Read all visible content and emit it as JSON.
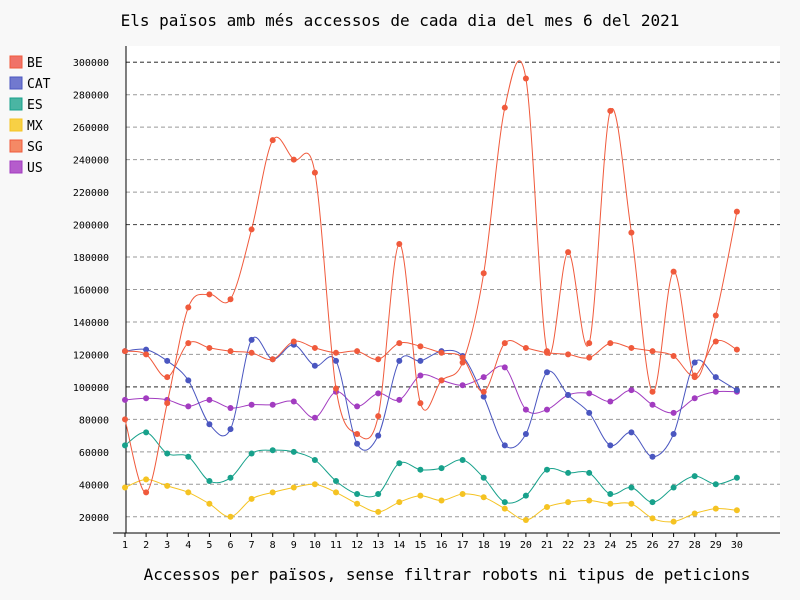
{
  "chart_data": {
    "type": "line",
    "title": "Els països amb més accessos de cada dia del mes 6 del 2021",
    "xlabel": "Accessos per països, sense filtrar robots ni tipus de peticions",
    "ylabel": "",
    "ylim": [
      10000,
      310000
    ],
    "xlim": [
      1,
      30
    ],
    "yticks": [
      20000,
      40000,
      60000,
      80000,
      100000,
      120000,
      140000,
      160000,
      180000,
      200000,
      220000,
      240000,
      260000,
      280000,
      300000
    ],
    "grid": "horizontal dashed",
    "legend_position": "top-left",
    "categories": [
      "1",
      "2",
      "3",
      "4",
      "5",
      "6",
      "7",
      "8",
      "9",
      "10",
      "11",
      "12",
      "13",
      "14",
      "15",
      "16",
      "17",
      "18",
      "19",
      "20",
      "21",
      "22",
      "23",
      "24",
      "25",
      "26",
      "27",
      "28",
      "29",
      "30"
    ],
    "series": [
      {
        "name": "BE",
        "color": "#f05a3c",
        "values": [
          122000,
          120000,
          106000,
          127000,
          124000,
          122000,
          121000,
          117000,
          128000,
          124000,
          121000,
          122000,
          117000,
          127000,
          125000,
          121000,
          118000,
          97000,
          127000,
          124000,
          121000,
          120000,
          118000,
          127000,
          124000,
          122000,
          119000,
          107000,
          128000,
          123000
        ]
      },
      {
        "name": "CAT",
        "color": "#4a56c0",
        "values": [
          122000,
          123000,
          116000,
          104000,
          77000,
          74000,
          129000,
          117000,
          126000,
          113000,
          116000,
          65000,
          70000,
          116000,
          116000,
          122000,
          119000,
          94000,
          64000,
          71000,
          109000,
          95000,
          84000,
          64000,
          72000,
          57000,
          71000,
          115000,
          106000,
          98000
        ]
      },
      {
        "name": "ES",
        "color": "#17a18b",
        "values": [
          64000,
          72000,
          59000,
          57000,
          42000,
          44000,
          59000,
          61000,
          60000,
          55000,
          42000,
          34000,
          34000,
          53000,
          49000,
          50000,
          55000,
          44000,
          29000,
          33000,
          49000,
          47000,
          47000,
          34000,
          38000,
          29000,
          38000,
          45000,
          40000,
          44000
        ]
      },
      {
        "name": "MX",
        "color": "#f5c322",
        "values": [
          38000,
          43000,
          39000,
          35000,
          28000,
          20000,
          31000,
          35000,
          38000,
          40000,
          35000,
          28000,
          23000,
          29000,
          33000,
          30000,
          34000,
          32000,
          25000,
          18000,
          26000,
          29000,
          30000,
          28000,
          28000,
          19000,
          17000,
          22000,
          25000,
          24000
        ]
      },
      {
        "name": "SG",
        "color": "#f05a3c",
        "values": [
          80000,
          35000,
          90000,
          149000,
          157000,
          154000,
          197000,
          252000,
          240000,
          232000,
          99000,
          71000,
          82000,
          188000,
          90000,
          104000,
          115000,
          170000,
          272000,
          290000,
          122000,
          183000,
          127000,
          270000,
          195000,
          97000,
          171000,
          106000,
          144000,
          208000
        ]
      },
      {
        "name": "US",
        "color": "#a23cc0",
        "values": [
          92000,
          93000,
          92000,
          88000,
          92000,
          87000,
          89000,
          89000,
          91000,
          81000,
          97000,
          88000,
          96000,
          92000,
          107000,
          104000,
          101000,
          106000,
          112000,
          86000,
          86000,
          95000,
          96000,
          91000,
          98000,
          89000,
          84000,
          93000,
          97000,
          97000
        ]
      }
    ],
    "legend_swatch_colors": [
      "#f07268",
      "#7179cf",
      "#4ab5a3",
      "#f7d045",
      "#f58965",
      "#b55ccc"
    ]
  }
}
